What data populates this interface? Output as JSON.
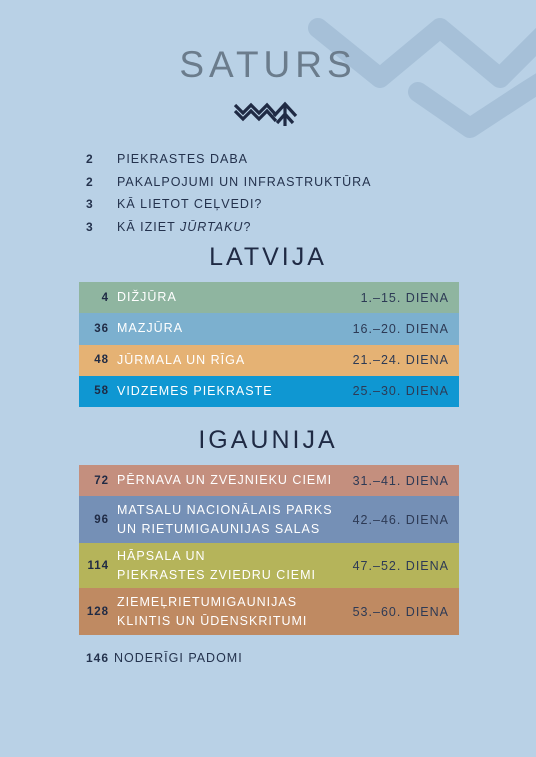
{
  "title": "SATURS",
  "intro": [
    {
      "num": "2",
      "text": "PIEKRASTES DABA"
    },
    {
      "num": "2",
      "text": "PAKALPOJUMI UN INFRASTRUKTŪRA"
    },
    {
      "num": "3",
      "text": "KĀ LIETOT CEĻVEDI?"
    },
    {
      "num": "3",
      "text_before": "KĀ IZIET ",
      "text_italic": "JŪRTAKU",
      "text_after": "?"
    }
  ],
  "latvija": {
    "title": "LATVIJA",
    "rows": [
      {
        "num": "4",
        "title": "DIŽJŪRA",
        "days": "1.–15. DIENA",
        "color": "#8fb5a0"
      },
      {
        "num": "36",
        "title": "MAZJŪRA",
        "days": "16.–20. DIENA",
        "color": "#7cb0cf"
      },
      {
        "num": "48",
        "title": "JŪRMALA UN RĪGA",
        "days": "21.–24. DIENA",
        "color": "#e5b274"
      },
      {
        "num": "58",
        "title": "VIDZEMES PIEKRASTE",
        "days": "25.–30. DIENA",
        "color": "#0f97d2"
      }
    ]
  },
  "igaunija": {
    "title": "IGAUNIJA",
    "rows": [
      {
        "num": "72",
        "line1": "PĒRNAVA UN ZVEJNIEKU CIEMI",
        "line2": "",
        "days": "31.–41. DIENA",
        "color": "#c48f7e"
      },
      {
        "num": "96",
        "line1": "MATSALU NACIONĀLAIS PARKS",
        "line2": "UN RIETUMIGAUNIJAS SALAS",
        "days": "42.–46. DIENA",
        "color": "#7590b6"
      },
      {
        "num": "114",
        "line1": "HĀPSALA UN",
        "line2": "PIEKRASTES ZVIEDRU CIEMI",
        "days": "47.–52. DIENA",
        "color": "#b5b45a"
      },
      {
        "num": "128",
        "line1": "ZIEMEĻRIETUMIGAUNIJAS",
        "line2": "KLINTIS UN ŪDENSKRITUMI",
        "days": "53.–60. DIENA",
        "color": "#bf8a62"
      }
    ]
  },
  "footer": {
    "num": "146",
    "text": "NODERĪGI PADOMI"
  },
  "colors": {
    "background": "#b9d1e6",
    "title": "#6b7c8c",
    "text": "#1f2a44"
  },
  "icons": {
    "logo": "waves-and-tree-icon",
    "decoration": "wave-pattern-decoration"
  }
}
